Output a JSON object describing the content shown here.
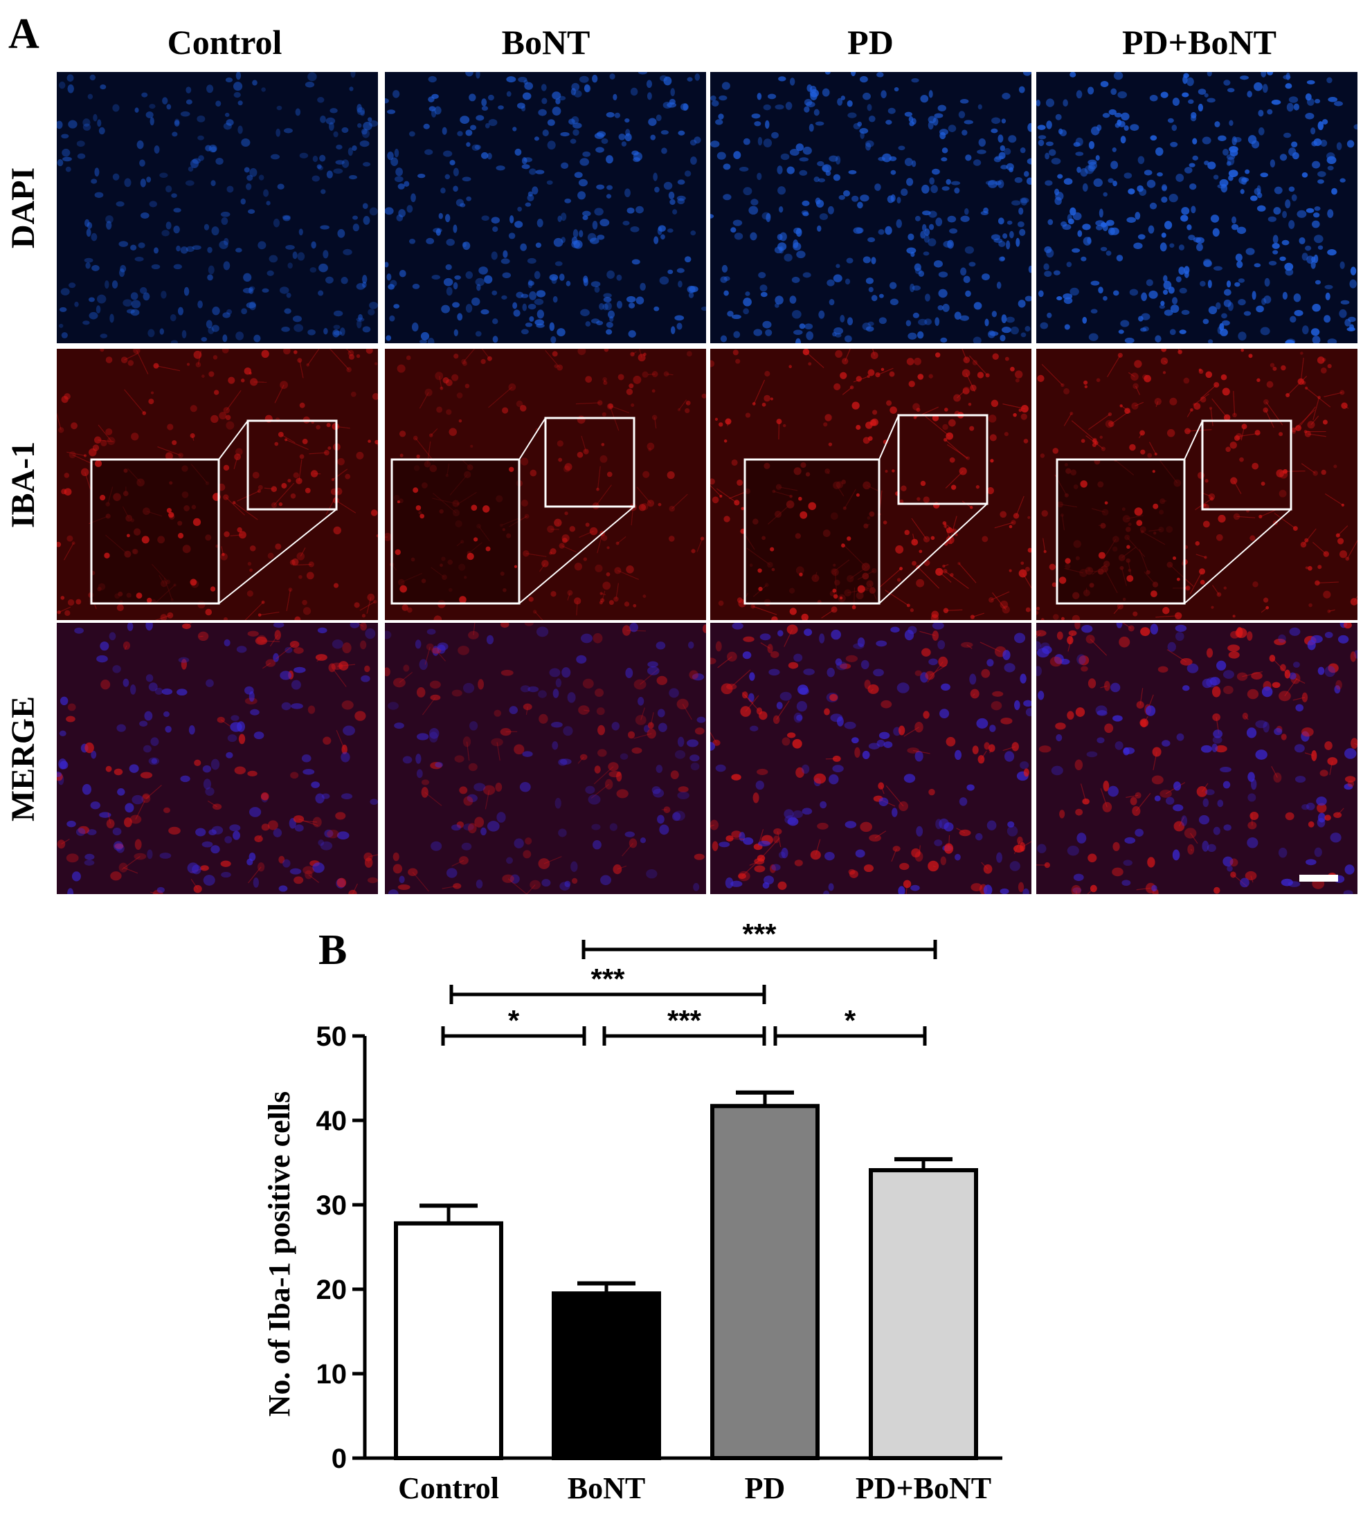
{
  "panel_a": {
    "letter": "A",
    "columns": [
      "Control",
      "BoNT",
      "PD",
      "PD+BoNT"
    ],
    "rows": [
      "DAPI",
      "IBA-1",
      "MERGE"
    ],
    "colors": {
      "dapi": "#2060e0",
      "iba1": "#e01818",
      "merge_blue": "#3a28d8",
      "inset_box": "#ffffff"
    },
    "tile_brightness": {
      "dapi": [
        0.55,
        0.75,
        0.8,
        0.95
      ],
      "iba1": [
        0.7,
        0.55,
        0.85,
        0.8
      ],
      "merge": [
        0.75,
        0.6,
        0.85,
        0.85
      ]
    }
  },
  "panel_b": {
    "letter": "B"
  },
  "chart_data": {
    "type": "bar",
    "categories": [
      "Control",
      "BoNT",
      "PD",
      "PD+BoNT"
    ],
    "values": [
      27.8,
      19.5,
      41.7,
      34.1
    ],
    "errors": [
      2.1,
      1.2,
      1.6,
      1.3
    ],
    "fills": [
      "#ffffff",
      "#000000",
      "#808080",
      "#d4d4d4"
    ],
    "ylabel": "No. of Iba-1 positive cells",
    "ylim": [
      0,
      50
    ],
    "yticks": [
      "0",
      "10",
      "20",
      "30",
      "40",
      "50"
    ],
    "significance": [
      {
        "from": 0,
        "to": 1,
        "label": "*"
      },
      {
        "from": 1,
        "to": 2,
        "label": "***"
      },
      {
        "from": 2,
        "to": 3,
        "label": "*"
      },
      {
        "from": 0,
        "to": 2,
        "label": "***"
      },
      {
        "from": 1,
        "to": 3,
        "label": "***"
      }
    ]
  }
}
